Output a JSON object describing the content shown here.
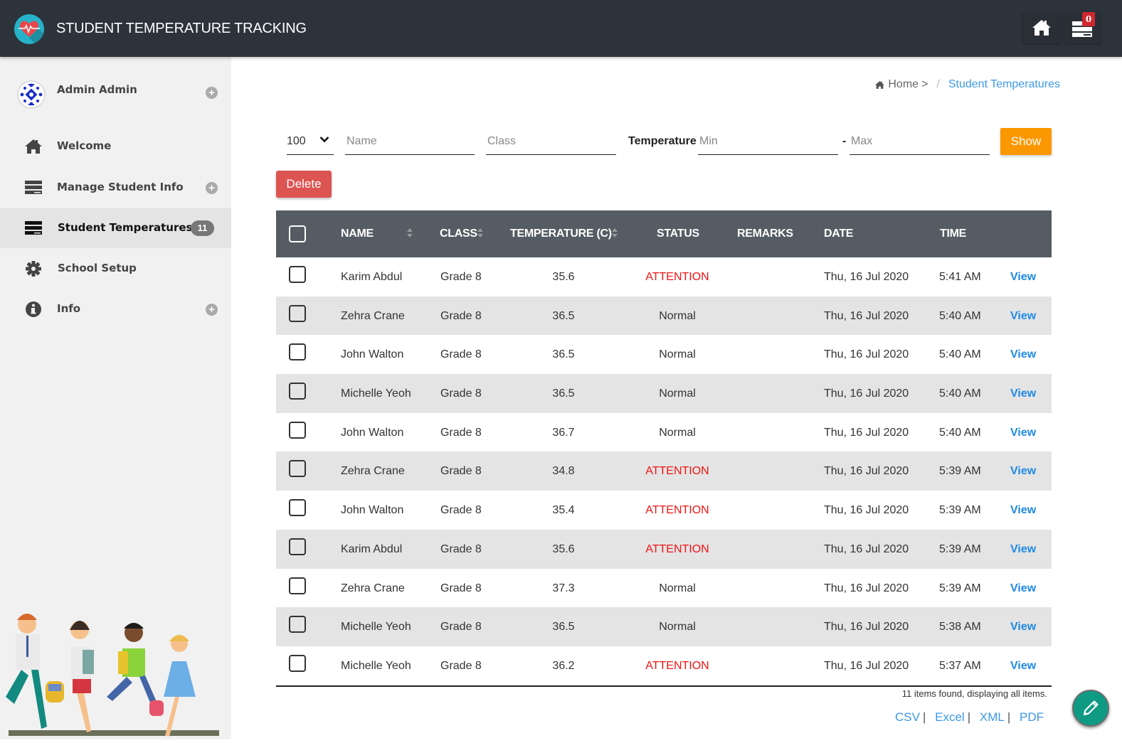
{
  "header": {
    "title": "STUDENT TEMPERATURE TRACKING",
    "notification_count": "0",
    "colors": {
      "bar": "#2d333b",
      "logo": "#26b3c9",
      "heart": "#e8484b",
      "badge": "#d0272d"
    }
  },
  "sidebar": {
    "user": {
      "name": "Admin Admin"
    },
    "items": [
      {
        "label": "Welcome",
        "icon": "home-icon"
      },
      {
        "label": "Manage Student Info",
        "icon": "list-icon",
        "expandable": true
      },
      {
        "label": "Student Temperatures",
        "icon": "list-icon",
        "count": "11",
        "active": true
      },
      {
        "label": "School Setup",
        "icon": "gear-icon"
      },
      {
        "label": "Info",
        "icon": "info-icon",
        "expandable": true
      }
    ]
  },
  "breadcrumb": {
    "home": "Home",
    "separator_arrow": ">",
    "separator": "/",
    "current": "Student Temperatures"
  },
  "filters": {
    "page_size": "100",
    "name_placeholder": "Name",
    "class_placeholder": "Class",
    "temperature_label": "Temperature",
    "min_placeholder": "Min",
    "dash": "-",
    "max_placeholder": "Max",
    "show_label": "Show",
    "delete_label": "Delete",
    "colors": {
      "show": "#fb9700",
      "delete": "#dc5552"
    }
  },
  "table": {
    "columns": [
      "NAME",
      "CLASS",
      "TEMPERATURE (C)",
      "STATUS",
      "REMARKS",
      "DATE",
      "TIME"
    ],
    "rows": [
      {
        "name": "Karim Abdul",
        "class": "Grade 8",
        "temp": "35.6",
        "status": "ATTENTION",
        "remarks": "",
        "date": "Thu, 16 Jul 2020",
        "time": "5:41 AM",
        "action": "View"
      },
      {
        "name": "Zehra Crane",
        "class": "Grade 8",
        "temp": "36.5",
        "status": "Normal",
        "remarks": "",
        "date": "Thu, 16 Jul 2020",
        "time": "5:40 AM",
        "action": "View"
      },
      {
        "name": "John Walton",
        "class": "Grade 8",
        "temp": "36.5",
        "status": "Normal",
        "remarks": "",
        "date": "Thu, 16 Jul 2020",
        "time": "5:40 AM",
        "action": "View"
      },
      {
        "name": "Michelle Yeoh",
        "class": "Grade 8",
        "temp": "36.5",
        "status": "Normal",
        "remarks": "",
        "date": "Thu, 16 Jul 2020",
        "time": "5:40 AM",
        "action": "View"
      },
      {
        "name": "John Walton",
        "class": "Grade 8",
        "temp": "36.7",
        "status": "Normal",
        "remarks": "",
        "date": "Thu, 16 Jul 2020",
        "time": "5:40 AM",
        "action": "View"
      },
      {
        "name": "Zehra Crane",
        "class": "Grade 8",
        "temp": "34.8",
        "status": "ATTENTION",
        "remarks": "",
        "date": "Thu, 16 Jul 2020",
        "time": "5:39 AM",
        "action": "View"
      },
      {
        "name": "John Walton",
        "class": "Grade 8",
        "temp": "35.4",
        "status": "ATTENTION",
        "remarks": "",
        "date": "Thu, 16 Jul 2020",
        "time": "5:39 AM",
        "action": "View"
      },
      {
        "name": "Karim Abdul",
        "class": "Grade 8",
        "temp": "35.6",
        "status": "ATTENTION",
        "remarks": "",
        "date": "Thu, 16 Jul 2020",
        "time": "5:39 AM",
        "action": "View"
      },
      {
        "name": "Zehra Crane",
        "class": "Grade 8",
        "temp": "37.3",
        "status": "Normal",
        "remarks": "",
        "date": "Thu, 16 Jul 2020",
        "time": "5:39 AM",
        "action": "View"
      },
      {
        "name": "Michelle Yeoh",
        "class": "Grade 8",
        "temp": "36.5",
        "status": "Normal",
        "remarks": "",
        "date": "Thu, 16 Jul 2020",
        "time": "5:38 AM",
        "action": "View"
      },
      {
        "name": "Michelle Yeoh",
        "class": "Grade 8",
        "temp": "36.2",
        "status": "ATTENTION",
        "remarks": "",
        "date": "Thu, 16 Jul 2020",
        "time": "5:37 AM",
        "action": "View"
      }
    ],
    "summary": "11 items found, displaying all items.",
    "exports": [
      "CSV",
      "Excel",
      "XML",
      "PDF"
    ],
    "colors": {
      "header": "#555c63",
      "alt_row": "#e4e4e4",
      "attention": "#f01313",
      "link": "#1e8ae6"
    }
  },
  "fab": {
    "icon": "pencil-icon",
    "color": "#0f9a84"
  }
}
